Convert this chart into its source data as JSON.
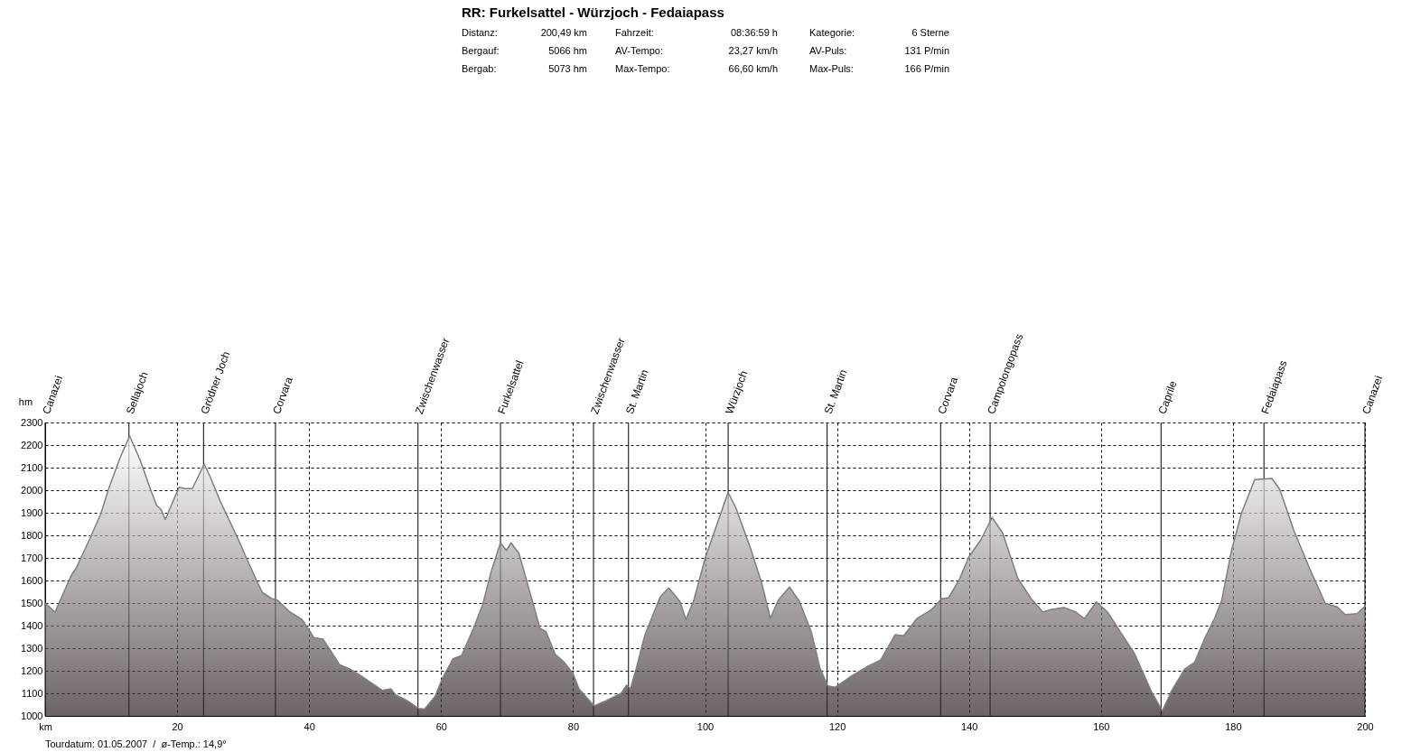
{
  "chart_data": {
    "type": "area",
    "title": "RR: Furkelsattel - Würzjoch - Fedaiapass",
    "ylabel": "hm",
    "annotations": [
      "Distanz: 200,49 km",
      "Bergauf: 5066 hm",
      "Bergab: 5073 hm",
      "Fahrzeit: 08:36:59 h",
      "AV-Tempo: 23,27 km/h",
      "Max-Tempo: 66,60 km/h",
      "Kategorie: 6 Sterne",
      "AV-Puls: 131 P/min",
      "Max-Puls: 166 P/min",
      "Tourdatum: 01.05.2007  /  ø-Temp.: 14,9°"
    ],
    "x": [
      0,
      1.5,
      2.4,
      4.0,
      4.7,
      6.8,
      8.4,
      9.7,
      11.4,
      12.8,
      14.4,
      16.0,
      16.9,
      17.6,
      18.2,
      19.4,
      20.3,
      21.2,
      22.3,
      23.3,
      24.1,
      25.1,
      26.5,
      29.3,
      30.9,
      32.9,
      34.3,
      35.2,
      37.1,
      38.9,
      40.0,
      40.7,
      42.1,
      43.0,
      44.6,
      46.2,
      48.1,
      51.1,
      52.4,
      53.1,
      54.5,
      55.6,
      56.6,
      57.5,
      59.1,
      60.2,
      61.8,
      63.1,
      64.9,
      66.3,
      67.6,
      69.0,
      69.9,
      70.6,
      71.8,
      73.6,
      75.0,
      75.9,
      77.3,
      78.6,
      80.0,
      80.9,
      83.2,
      85.0,
      87.3,
      88.1,
      88.7,
      89.6,
      90.9,
      93.2,
      94.5,
      96.2,
      97.1,
      98.3,
      100.1,
      103.5,
      104.7,
      107.0,
      108.6,
      109.9,
      111.1,
      112.8,
      114.3,
      116.1,
      117.4,
      118.6,
      119.7,
      122.0,
      124.7,
      126.6,
      128.8,
      130.1,
      132.1,
      134.2,
      135.9,
      136.9,
      138.5,
      140.0,
      141.8,
      143.5,
      145.1,
      147.4,
      149.4,
      151.2,
      152.4,
      154.4,
      156.2,
      157.5,
      159.3,
      161.0,
      163.1,
      165.1,
      167.6,
      169.3,
      170.7,
      172.7,
      174.2,
      175.7,
      177.2,
      178.3,
      179.8,
      181.3,
      183.3,
      185.9,
      187.1,
      189.2,
      191.5,
      194.0,
      195.8,
      197.0,
      198.8,
      200.0
    ],
    "series": [
      {
        "color": "#7f7f7f",
        "values": [
          1500,
          1460,
          1520,
          1625,
          1655,
          1787,
          1893,
          2013,
          2147,
          2240,
          2133,
          2000,
          1933,
          1913,
          1870,
          1953,
          2013,
          2007,
          2007,
          2067,
          2116,
          2053,
          1953,
          1780,
          1673,
          1547,
          1520,
          1513,
          1460,
          1427,
          1380,
          1347,
          1340,
          1300,
          1227,
          1207,
          1173,
          1113,
          1120,
          1093,
          1073,
          1053,
          1033,
          1030,
          1087,
          1167,
          1253,
          1267,
          1387,
          1493,
          1640,
          1767,
          1733,
          1767,
          1720,
          1533,
          1387,
          1373,
          1273,
          1240,
          1187,
          1120,
          1044,
          1067,
          1100,
          1136,
          1120,
          1213,
          1360,
          1527,
          1567,
          1507,
          1427,
          1513,
          1707,
          1990,
          1920,
          1733,
          1587,
          1433,
          1513,
          1571,
          1507,
          1373,
          1213,
          1133,
          1127,
          1173,
          1220,
          1247,
          1360,
          1355,
          1431,
          1468,
          1520,
          1523,
          1602,
          1706,
          1780,
          1879,
          1810,
          1609,
          1520,
          1460,
          1471,
          1480,
          1460,
          1431,
          1505,
          1460,
          1364,
          1275,
          1111,
          1022,
          1111,
          1208,
          1238,
          1342,
          1431,
          1512,
          1735,
          1899,
          2047,
          2052,
          2003,
          1824,
          1661,
          1498,
          1483,
          1449,
          1453,
          1486
        ]
      }
    ],
    "xlim": [
      0,
      200
    ],
    "xticks": [
      {
        "value": 0,
        "label": "km"
      },
      20,
      40,
      60,
      80,
      100,
      120,
      140,
      160,
      180,
      200
    ],
    "ylim": [
      1000,
      2300
    ],
    "yticks": [
      1000,
      1100,
      1200,
      1300,
      1400,
      1500,
      1600,
      1700,
      1800,
      1900,
      2000,
      2100,
      2200,
      2300
    ],
    "ref_lines": [
      {
        "axis": "x",
        "value": 0,
        "label": "Canazei"
      },
      {
        "axis": "x",
        "value": 12.7,
        "label": "Sellajoch"
      },
      {
        "axis": "x",
        "value": 24.0,
        "label": "Grödner Joch"
      },
      {
        "axis": "x",
        "value": 34.9,
        "label": "Corvara"
      },
      {
        "axis": "x",
        "value": 56.5,
        "label": "Zwischenwasser"
      },
      {
        "axis": "x",
        "value": 69.0,
        "label": "Furkelsattel"
      },
      {
        "axis": "x",
        "value": 83.1,
        "label": "Zwischenwasser"
      },
      {
        "axis": "x",
        "value": 88.4,
        "label": "St. Martin"
      },
      {
        "axis": "x",
        "value": 103.5,
        "label": "Würzjoch"
      },
      {
        "axis": "x",
        "value": 118.5,
        "label": "St. Martin"
      },
      {
        "axis": "x",
        "value": 135.7,
        "label": "Corvara"
      },
      {
        "axis": "x",
        "value": 143.2,
        "label": "Campolongopass"
      },
      {
        "axis": "x",
        "value": 169.1,
        "label": "Caprile"
      },
      {
        "axis": "x",
        "value": 184.7,
        "label": "Fedaiapass"
      },
      {
        "axis": "x",
        "value": 200,
        "label": "Canazei"
      }
    ],
    "grid": true,
    "marker": "none",
    "line_style": "solid"
  }
}
